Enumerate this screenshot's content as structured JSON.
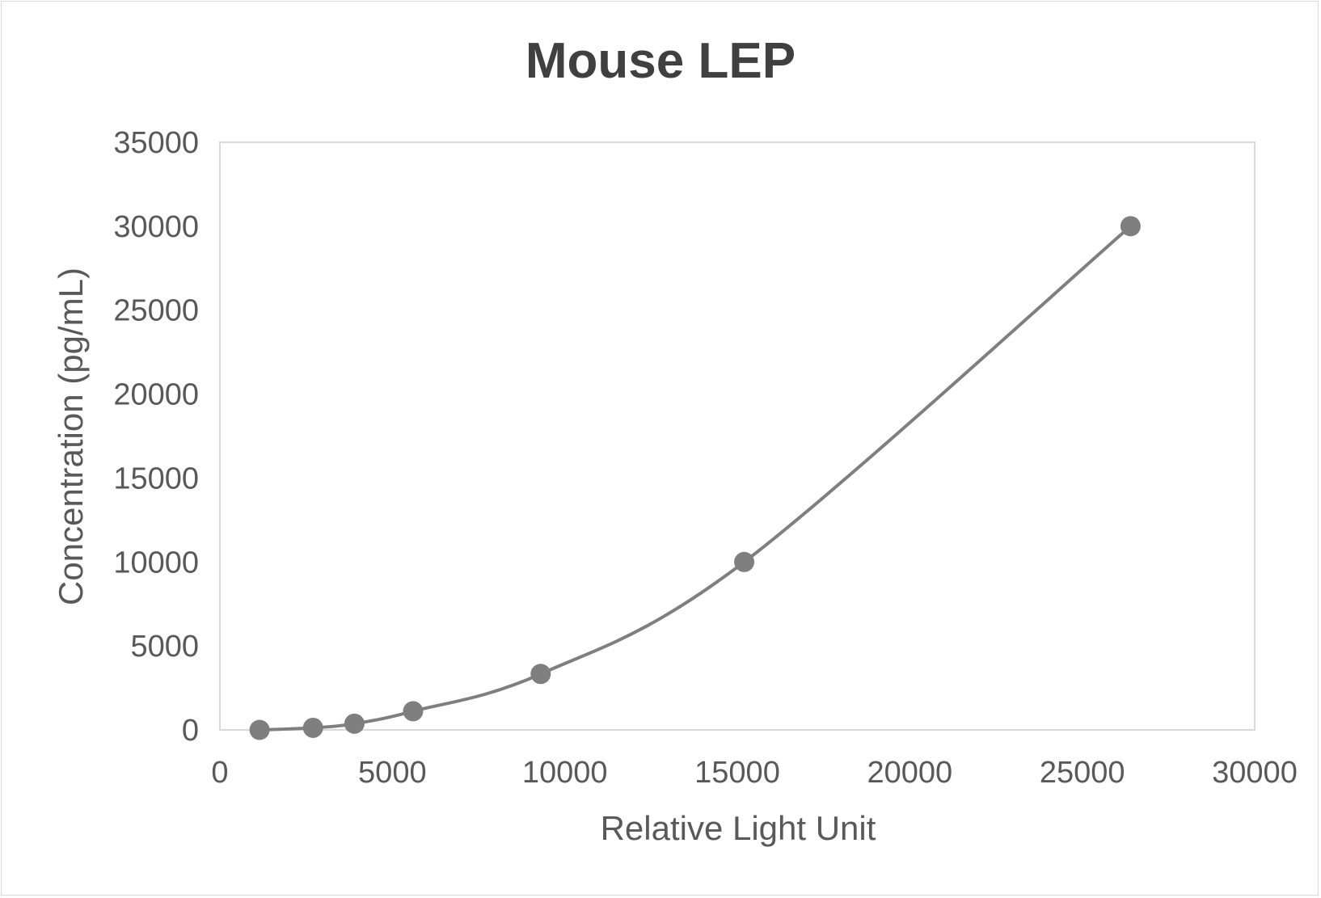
{
  "chart_data": {
    "type": "scatter",
    "title": "Mouse LEP",
    "xlabel": "Relative Light Unit",
    "ylabel": "Concentration (pg/mL)",
    "xlim": [
      0,
      30000
    ],
    "ylim": [
      0,
      35000
    ],
    "xticks": [
      0,
      5000,
      10000,
      15000,
      20000,
      25000,
      30000
    ],
    "yticks": [
      0,
      5000,
      10000,
      15000,
      20000,
      25000,
      30000,
      35000
    ],
    "grid": false,
    "smooth_line": true,
    "series": [
      {
        "x": [
          1150,
          2700,
          3900,
          5600,
          9300,
          15200,
          26400
        ],
        "y": [
          0,
          123,
          370,
          1111,
          3333,
          10000,
          30000
        ],
        "color": "#7f7f7f"
      }
    ]
  }
}
